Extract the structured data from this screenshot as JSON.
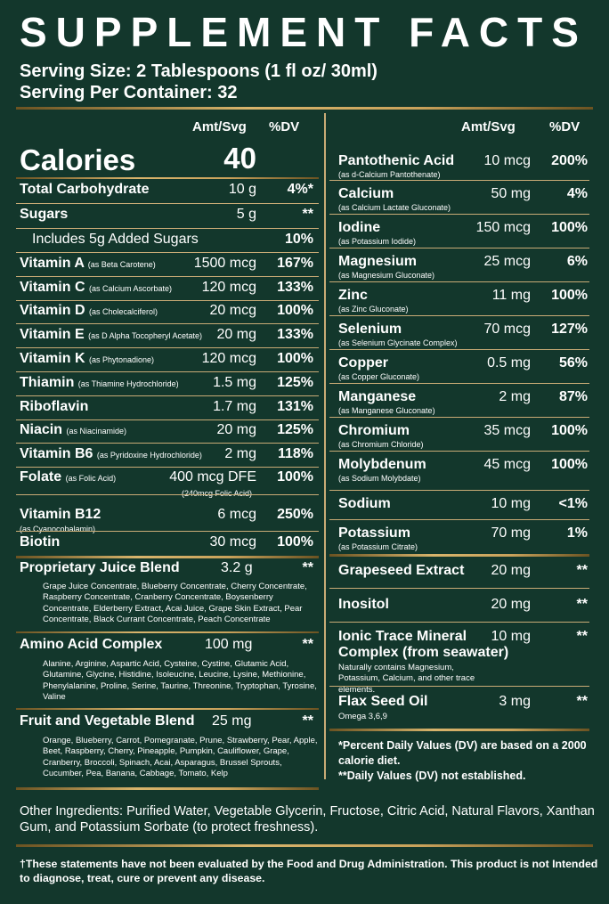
{
  "title": "SUPPLEMENT FACTS",
  "serving_size": "Serving Size: 2 Tablespoons (1 fl oz/ 30ml)",
  "servings_per_container": "Serving Per Container: 32",
  "headers": {
    "amt": "Amt/Svg",
    "dv": "%DV"
  },
  "calories": {
    "label": "Calories",
    "value": "40"
  },
  "left_rows": [
    {
      "name": "Total Carbohydrate",
      "source": "",
      "amount": "10 g",
      "dv": "4%*"
    },
    {
      "name": "Sugars",
      "source": "",
      "amount": "5 g",
      "dv": "**"
    },
    {
      "name": "Includes 5g Added Sugars",
      "source": "",
      "amount": "",
      "dv": "10%"
    },
    {
      "name": "Vitamin A",
      "source": "(as Beta Carotene)",
      "amount": "1500 mcg",
      "dv": "167%"
    },
    {
      "name": "Vitamin C",
      "source": "(as Calcium Ascorbate)",
      "amount": "120 mcg",
      "dv": "133%"
    },
    {
      "name": "Vitamin D",
      "source": "(as Cholecalciferol)",
      "amount": "20 mcg",
      "dv": "100%"
    },
    {
      "name": "Vitamin E",
      "source": "(as D Alpha Tocopheryl Acetate)",
      "amount": "20 mg",
      "dv": "133%"
    },
    {
      "name": "Vitamin K",
      "source": "(as Phytonadione)",
      "amount": "120 mcg",
      "dv": "100%"
    },
    {
      "name": "Thiamin",
      "source": "(as Thiamine Hydrochloride)",
      "amount": "1.5 mg",
      "dv": "125%"
    },
    {
      "name": "Riboflavin",
      "source": "",
      "amount": "1.7 mg",
      "dv": "131%"
    },
    {
      "name": "Niacin",
      "source": "(as Niacinamide)",
      "amount": "20 mg",
      "dv": "125%"
    },
    {
      "name": "Vitamin B6",
      "source": "(as Pyridoxine Hydrochloride)",
      "amount": "2 mg",
      "dv": "118%"
    },
    {
      "name": "Folate",
      "source": "(as Folic Acid)",
      "amount": "400 mcg DFE",
      "dv": "100%",
      "note": "(240mcg Folic Acid)"
    },
    {
      "name": "Vitamin B12",
      "source": "",
      "amount": "6 mcg",
      "dv": "250%",
      "sub": "(as Cyanocobalamin)"
    },
    {
      "name": "Biotin",
      "source": "",
      "amount": "30 mcg",
      "dv": "100%"
    }
  ],
  "left_blends": [
    {
      "name": "Proprietary Juice Blend",
      "amount": "3.2 g",
      "dv": "**",
      "ingredients": "Grape Juice Concentrate, Blueberry Concentrate, Cherry Concentrate, Raspberry Concentrate, Cranberry Concentrate, Boysenberry Concentrate, Elderberry Extract, Acai Juice, Grape Skin Extract, Pear Concentrate, Black Currant Concentrate, Peach Concentrate"
    },
    {
      "name": "Amino Acid Complex",
      "amount": "100 mg",
      "dv": "**",
      "ingredients": "Alanine, Arginine, Aspartic Acid, Cysteine, Cystine, Glutamic Acid, Glutamine, Glycine, Histidine, Isoleucine, Leucine, Lysine, Methionine, Phenylalanine, Proline, Serine, Taurine, Threonine, Tryptophan, Tyrosine, Valine"
    },
    {
      "name": "Fruit and Vegetable Blend",
      "amount": "25 mg",
      "dv": "**",
      "ingredients": "Orange, Blueberry, Carrot, Pomegranate, Prune, Strawberry, Pear, Apple, Beet, Raspberry, Cherry, Pineapple, Pumpkin, Cauliflower, Grape, Cranberry, Broccoli, Spinach, Acai, Asparagus, Brussel Sprouts, Cucumber, Pea, Banana, Cabbage, Tomato, Kelp"
    }
  ],
  "right_rows": [
    {
      "name": "Pantothenic Acid",
      "source": "(as d-Calcium Pantothenate)",
      "amount": "10 mcg",
      "dv": "200%"
    },
    {
      "name": "Calcium",
      "source": "(as Calcium Lactate Gluconate)",
      "amount": "50 mg",
      "dv": "4%"
    },
    {
      "name": "Iodine",
      "source": "(as Potassium Iodide)",
      "amount": "150 mcg",
      "dv": "100%"
    },
    {
      "name": "Magnesium",
      "source": "(as Magnesium Gluconate)",
      "amount": "25 mcg",
      "dv": "6%"
    },
    {
      "name": "Zinc",
      "source": "(as Zinc Gluconate)",
      "amount": "11 mg",
      "dv": "100%"
    },
    {
      "name": "Selenium",
      "source": "(as Selenium Glycinate Complex)",
      "amount": "70 mcg",
      "dv": "127%"
    },
    {
      "name": "Copper",
      "source": "(as Copper Gluconate)",
      "amount": "0.5 mg",
      "dv": "56%"
    },
    {
      "name": "Manganese",
      "source": "(as Manganese Gluconate)",
      "amount": "2 mg",
      "dv": "87%"
    },
    {
      "name": "Chromium",
      "source": "(as Chromium Chloride)",
      "amount": "35 mcg",
      "dv": "100%"
    },
    {
      "name": "Molybdenum",
      "source": "(as Sodium Molybdate)",
      "amount": "45 mcg",
      "dv": "100%"
    },
    {
      "name": "Sodium",
      "source": "",
      "amount": "10 mg",
      "dv": "<1%"
    },
    {
      "name": "Potassium",
      "source": "(as Potassium Citrate)",
      "amount": "70 mg",
      "dv": "1%"
    }
  ],
  "right_extras": [
    {
      "name": "Grapeseed Extract",
      "amount": "20 mg",
      "dv": "**"
    },
    {
      "name": "Inositol",
      "amount": "20 mg",
      "dv": "**"
    },
    {
      "name": "Ionic Trace Mineral",
      "name2": "Complex (from seawater)",
      "amount": "10 mg",
      "dv": "**",
      "sub": "Naturally contains Magnesium, Potassium, Calcium, and other trace elements."
    },
    {
      "name": "Flax Seed Oil",
      "amount": "3 mg",
      "dv": "**",
      "sub": "Omega 3,6,9"
    }
  ],
  "footnotes": {
    "dv_basis": "*Percent Daily Values (DV) are based on a 2000 calorie diet.",
    "not_established": "**Daily Values (DV) not established."
  },
  "other_ingredients": "Other Ingredients: Purified Water, Vegetable Glycerin, Fructose, Citric Acid, Natural Flavors, Xanthan Gum, and Potassium Sorbate (to protect freshness).",
  "disclaimer": "†These statements have not been evaluated by the Food and Drug Administration. This product is not Intended to diagnose, treat, cure or prevent any disease.",
  "colors": {
    "background": "#13372c",
    "gold": "#c9a25b",
    "text": "#ffffff"
  }
}
